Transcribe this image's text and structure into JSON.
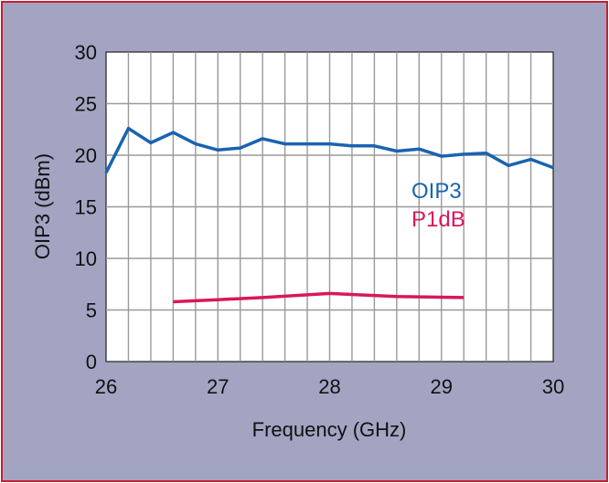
{
  "chart_data": {
    "type": "line",
    "title": "",
    "xlabel": "Frequency (GHz)",
    "ylabel": "OIP3 (dBm)",
    "xlim": [
      26,
      30
    ],
    "ylim": [
      0,
      30
    ],
    "xticks": [
      "26",
      "27",
      "28",
      "29",
      "30"
    ],
    "yticks": [
      "0",
      "5",
      "10",
      "15",
      "20",
      "25",
      "30"
    ],
    "grid": true,
    "legend_position": "center-right",
    "series": [
      {
        "name": "OIP3",
        "color": "#1a63b0",
        "x": [
          26.0,
          26.2,
          26.4,
          26.6,
          26.8,
          27.0,
          27.2,
          27.4,
          27.6,
          27.8,
          28.0,
          28.2,
          28.4,
          28.6,
          28.8,
          29.0,
          29.2,
          29.4,
          29.6,
          29.8,
          30.0
        ],
        "y": [
          18.3,
          22.6,
          21.2,
          22.2,
          21.1,
          20.5,
          20.7,
          21.6,
          21.1,
          21.1,
          21.1,
          20.9,
          20.9,
          20.4,
          20.6,
          19.9,
          20.1,
          20.2,
          19.0,
          19.6,
          18.8
        ]
      },
      {
        "name": "P1dB",
        "color": "#d8185c",
        "x": [
          26.6,
          27.0,
          27.4,
          28.0,
          28.6,
          29.2
        ],
        "y": [
          5.8,
          6.0,
          6.2,
          6.6,
          6.3,
          6.2
        ]
      }
    ]
  }
}
